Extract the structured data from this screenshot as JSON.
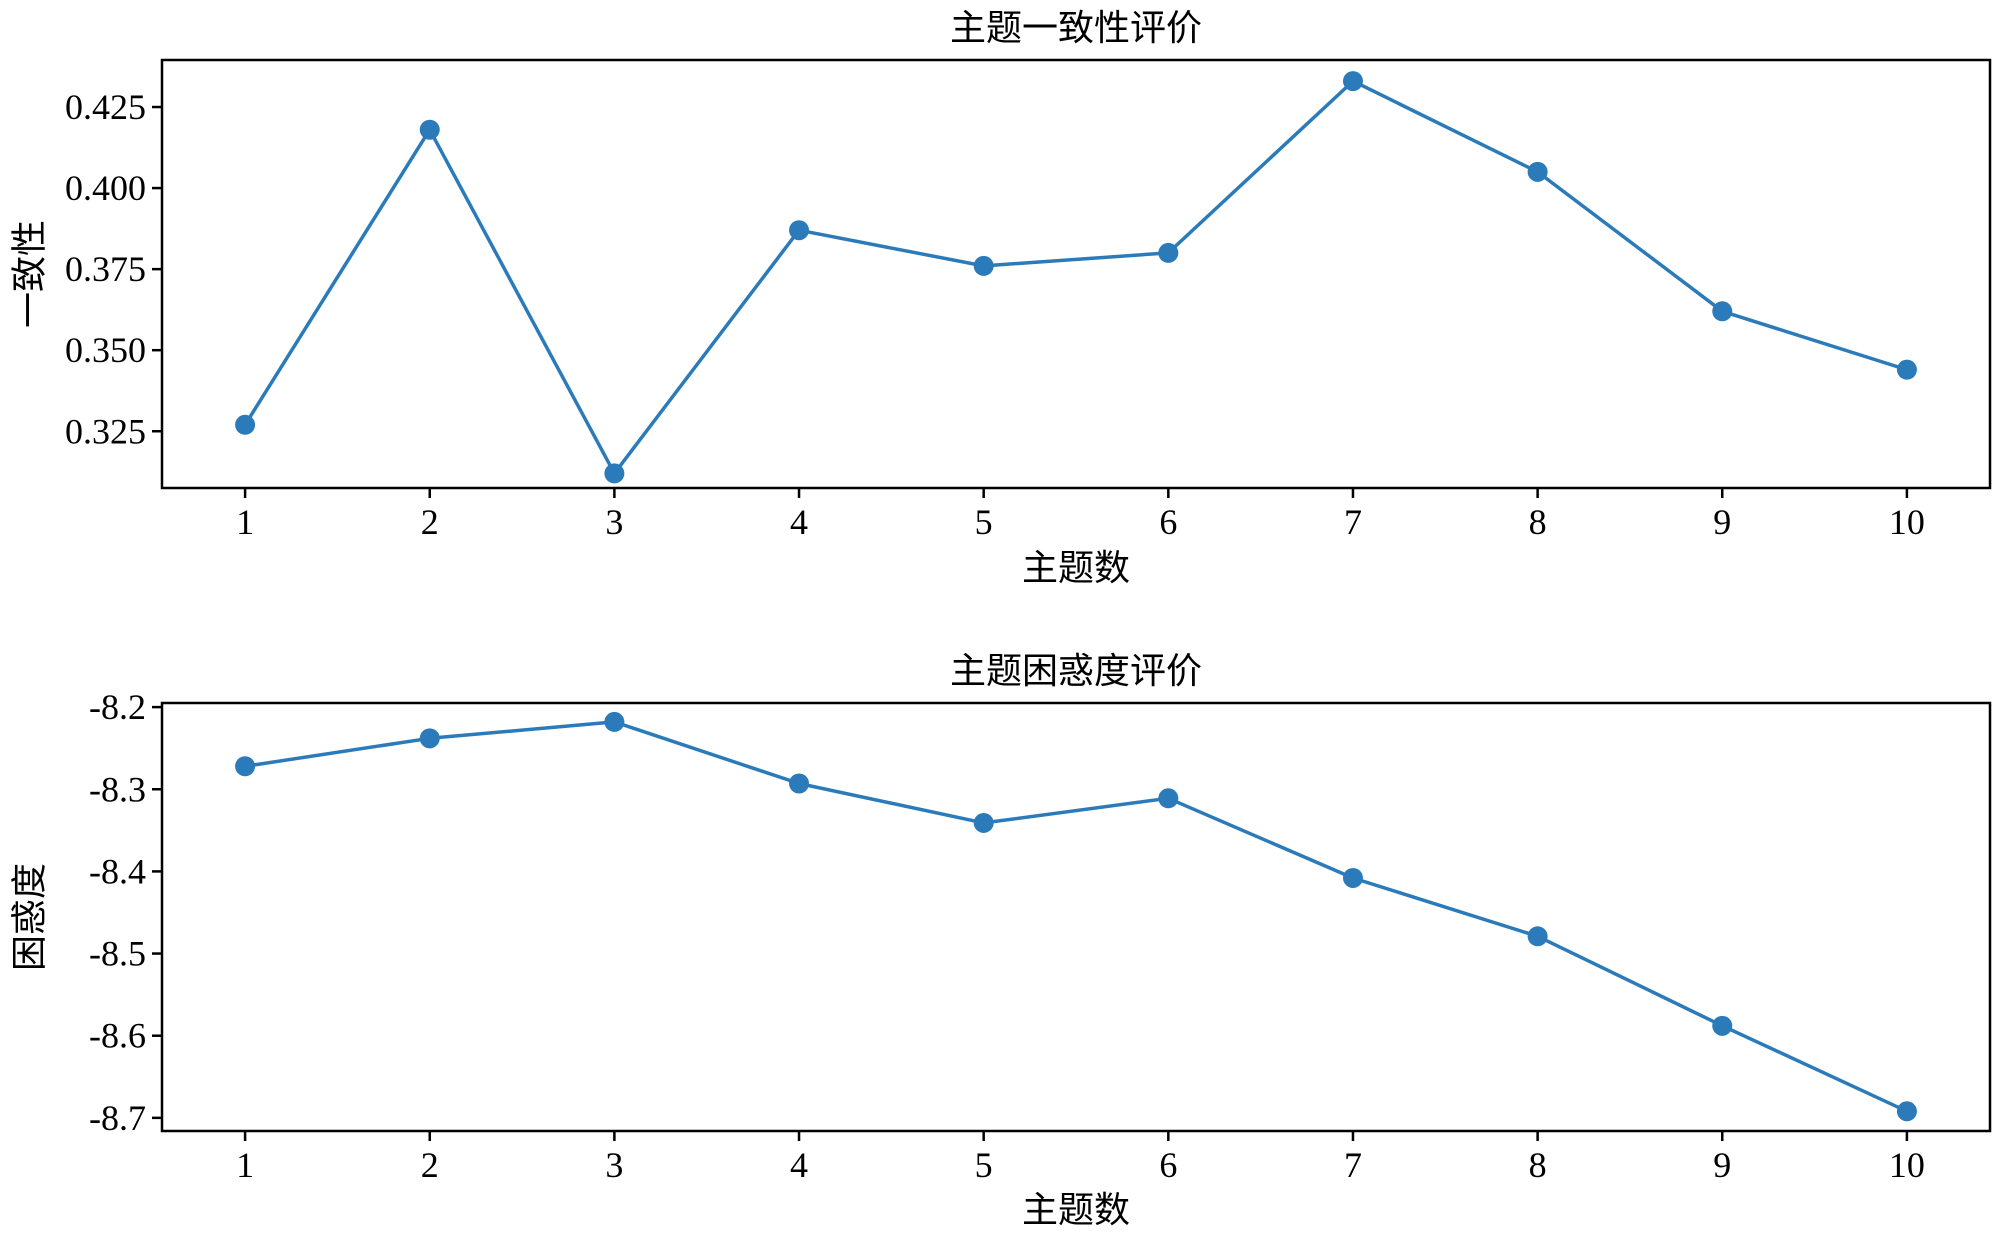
{
  "chart_data": [
    {
      "type": "line",
      "title": "主题一致性评价",
      "xlabel": "主题数",
      "ylabel": "一致性",
      "x": [
        1,
        2,
        3,
        4,
        5,
        6,
        7,
        8,
        9,
        10
      ],
      "series": [
        {
          "values": [
            0.327,
            0.418,
            0.312,
            0.387,
            0.376,
            0.38,
            0.433,
            0.405,
            0.362,
            0.344
          ]
        }
      ],
      "xticks": [
        1,
        2,
        3,
        4,
        5,
        6,
        7,
        8,
        9,
        10
      ],
      "yticks": [
        0.325,
        0.35,
        0.375,
        0.4,
        0.425
      ],
      "ytick_labels": [
        "0.325",
        "0.350",
        "0.375",
        "0.400",
        "0.425"
      ],
      "xlim": [
        0.55,
        10.45
      ],
      "ylim": [
        0.3075,
        0.4395
      ],
      "grid": false,
      "color": "#2b7bba"
    },
    {
      "type": "line",
      "title": "主题困惑度评价",
      "xlabel": "主题数",
      "ylabel": "困惑度",
      "x": [
        1,
        2,
        3,
        4,
        5,
        6,
        7,
        8,
        9,
        10
      ],
      "series": [
        {
          "values": [
            -8.272,
            -8.238,
            -8.218,
            -8.293,
            -8.341,
            -8.311,
            -8.408,
            -8.479,
            -8.588,
            -8.692
          ]
        }
      ],
      "xticks": [
        1,
        2,
        3,
        4,
        5,
        6,
        7,
        8,
        9,
        10
      ],
      "yticks": [
        -8.7,
        -8.6,
        -8.5,
        -8.4,
        -8.3,
        -8.2
      ],
      "ytick_labels": [
        "-8.7",
        "-8.6",
        "-8.5",
        "-8.4",
        "-8.3",
        "-8.2"
      ],
      "xlim": [
        0.55,
        10.45
      ],
      "ylim": [
        -8.716,
        -8.195
      ],
      "grid": false,
      "color": "#2b7bba"
    }
  ]
}
